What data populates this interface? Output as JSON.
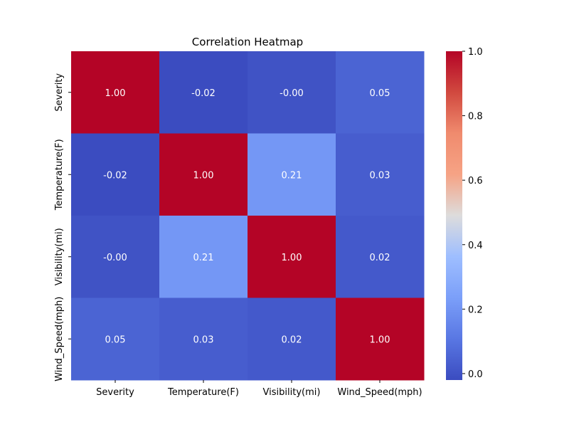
{
  "chart_data": {
    "type": "heatmap",
    "title": "Correlation Heatmap",
    "x_categories": [
      "Severity",
      "Temperature(F)",
      "Visibility(mi)",
      "Wind_Speed(mph)"
    ],
    "y_categories": [
      "Severity",
      "Temperature(F)",
      "Visibility(mi)",
      "Wind_Speed(mph)"
    ],
    "values": [
      [
        1.0,
        -0.02,
        -0.0,
        0.05
      ],
      [
        -0.02,
        1.0,
        0.21,
        0.03
      ],
      [
        -0.0,
        0.21,
        1.0,
        0.02
      ],
      [
        0.05,
        0.03,
        0.02,
        1.0
      ]
    ],
    "labels": [
      [
        "1.00",
        "-0.02",
        "-0.00",
        "0.05"
      ],
      [
        "-0.02",
        "1.00",
        "0.21",
        "0.03"
      ],
      [
        "-0.00",
        "0.21",
        "1.00",
        "0.02"
      ],
      [
        "0.05",
        "0.03",
        "0.02",
        "1.00"
      ]
    ],
    "colormap": "coolwarm",
    "colorbar": {
      "range": [
        -0.02,
        1.0
      ],
      "ticks": [
        0.0,
        0.2,
        0.4,
        0.6,
        0.8,
        1.0
      ],
      "tick_labels": [
        "0.0",
        "0.2",
        "0.4",
        "0.6",
        "0.8",
        "1.0"
      ]
    },
    "annotations": true
  }
}
